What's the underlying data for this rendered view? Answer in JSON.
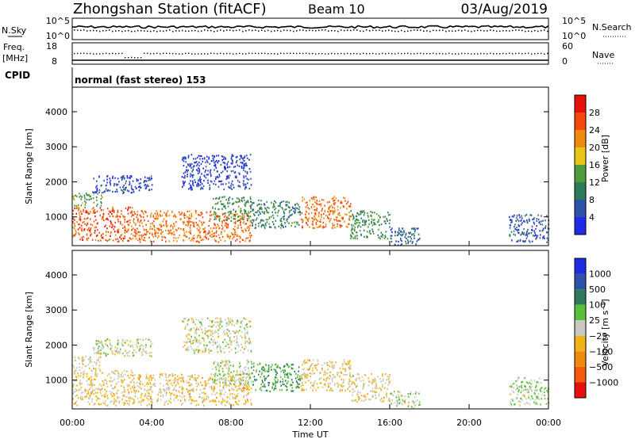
{
  "header": {
    "station": "Zhongshan Station (fitACF)",
    "beam": "Beam 10",
    "date": "03/Aug/2019"
  },
  "noise_panel": {
    "left_label": "N.Sky",
    "left_ticks": [
      "10^5",
      "10^0"
    ],
    "right_ticks": [
      "10^5",
      "10^0"
    ],
    "right_label": "N.Search"
  },
  "freq_panel": {
    "left_label_1": "Freq.",
    "left_label_2": "[MHz]",
    "left_ticks": [
      "18",
      "8"
    ],
    "right_ticks": [
      "60",
      "0"
    ],
    "right_label": "Nave"
  },
  "cpid_panel": {
    "label": "CPID",
    "text": "normal (fast stereo) 153"
  },
  "colors": {
    "power": [
      "#1f2be6",
      "#2e52a8",
      "#2f7a5c",
      "#4f9a3c",
      "#e9c514",
      "#f08a0c",
      "#f24a0a",
      "#e80f0f"
    ],
    "velocity": [
      "#e80f0f",
      "#f55a0a",
      "#f08a0c",
      "#f2b316",
      "#c9c9c2",
      "#5bbf3a",
      "#2f7a5c",
      "#2e52a8",
      "#1f2be6"
    ]
  },
  "chart_data": [
    {
      "type": "heatmap",
      "panel": "power",
      "ylabel": "Slant Range [km]",
      "yticks": [
        "1000",
        "2000",
        "3000",
        "4000"
      ],
      "ylim": [
        180,
        4700
      ],
      "colorbar_label": "Power [dB]",
      "colorbar_ticks": [
        "4",
        "8",
        "12",
        "16",
        "20",
        "24",
        "28"
      ],
      "scale_range": [
        0,
        32
      ],
      "regions": [
        {
          "t": [
            0.0,
            3.0
          ],
          "r": [
            300,
            1300
          ],
          "v": 26
        },
        {
          "t": [
            0.0,
            1.5
          ],
          "r": [
            1300,
            1700
          ],
          "v": 14
        },
        {
          "t": [
            1.0,
            4.0
          ],
          "r": [
            1700,
            2200
          ],
          "v": 5
        },
        {
          "t": [
            3.0,
            9.0
          ],
          "r": [
            300,
            1200
          ],
          "v": 24
        },
        {
          "t": [
            5.5,
            9.0
          ],
          "r": [
            1800,
            2800
          ],
          "v": 4
        },
        {
          "t": [
            7.0,
            9.0
          ],
          "r": [
            900,
            1600
          ],
          "v": 12
        },
        {
          "t": [
            9.0,
            11.5
          ],
          "r": [
            700,
            1500
          ],
          "v": 10
        },
        {
          "t": [
            11.5,
            14.0
          ],
          "r": [
            700,
            1600
          ],
          "v": 24
        },
        {
          "t": [
            14.0,
            16.0
          ],
          "r": [
            400,
            1200
          ],
          "v": 12
        },
        {
          "t": [
            16.0,
            17.5
          ],
          "r": [
            200,
            700
          ],
          "v": 7
        },
        {
          "t": [
            22.0,
            24.0
          ],
          "r": [
            300,
            1100
          ],
          "v": 6
        }
      ],
      "xlim_hours": [
        0,
        24
      ]
    },
    {
      "type": "heatmap",
      "panel": "velocity",
      "ylabel": "Slant Range [km]",
      "yticks": [
        "1000",
        "2000",
        "3000",
        "4000"
      ],
      "ylim": [
        180,
        4700
      ],
      "colorbar_label": "Velocity [m s⁻¹]",
      "colorbar_ticks": [
        "1000",
        "500",
        "100",
        "25",
        "−25",
        "−100",
        "−500",
        "−1000"
      ],
      "scale_range": [
        -1200,
        1200
      ],
      "regions": [
        {
          "t": [
            0.0,
            3.0
          ],
          "r": [
            300,
            1300
          ],
          "v": -150
        },
        {
          "t": [
            0.0,
            1.5
          ],
          "r": [
            1300,
            1700
          ],
          "v": -60
        },
        {
          "t": [
            1.0,
            4.0
          ],
          "r": [
            1700,
            2200
          ],
          "v": 0
        },
        {
          "t": [
            3.0,
            9.0
          ],
          "r": [
            300,
            1200
          ],
          "v": -200
        },
        {
          "t": [
            5.5,
            9.0
          ],
          "r": [
            1800,
            2800
          ],
          "v": 0
        },
        {
          "t": [
            7.0,
            9.0
          ],
          "r": [
            900,
            1600
          ],
          "v": 80
        },
        {
          "t": [
            9.0,
            11.5
          ],
          "r": [
            700,
            1500
          ],
          "v": 400
        },
        {
          "t": [
            11.5,
            14.0
          ],
          "r": [
            700,
            1600
          ],
          "v": -180
        },
        {
          "t": [
            14.0,
            16.0
          ],
          "r": [
            400,
            1200
          ],
          "v": -120
        },
        {
          "t": [
            16.0,
            17.5
          ],
          "r": [
            200,
            700
          ],
          "v": 60
        },
        {
          "t": [
            22.0,
            24.0
          ],
          "r": [
            300,
            1100
          ],
          "v": 120
        }
      ],
      "xlim_hours": [
        0,
        24
      ]
    }
  ],
  "xaxis": {
    "ticks": [
      "00:00",
      "04:00",
      "08:00",
      "12:00",
      "16:00",
      "20:00",
      "00:00"
    ],
    "label": "Time UT"
  }
}
